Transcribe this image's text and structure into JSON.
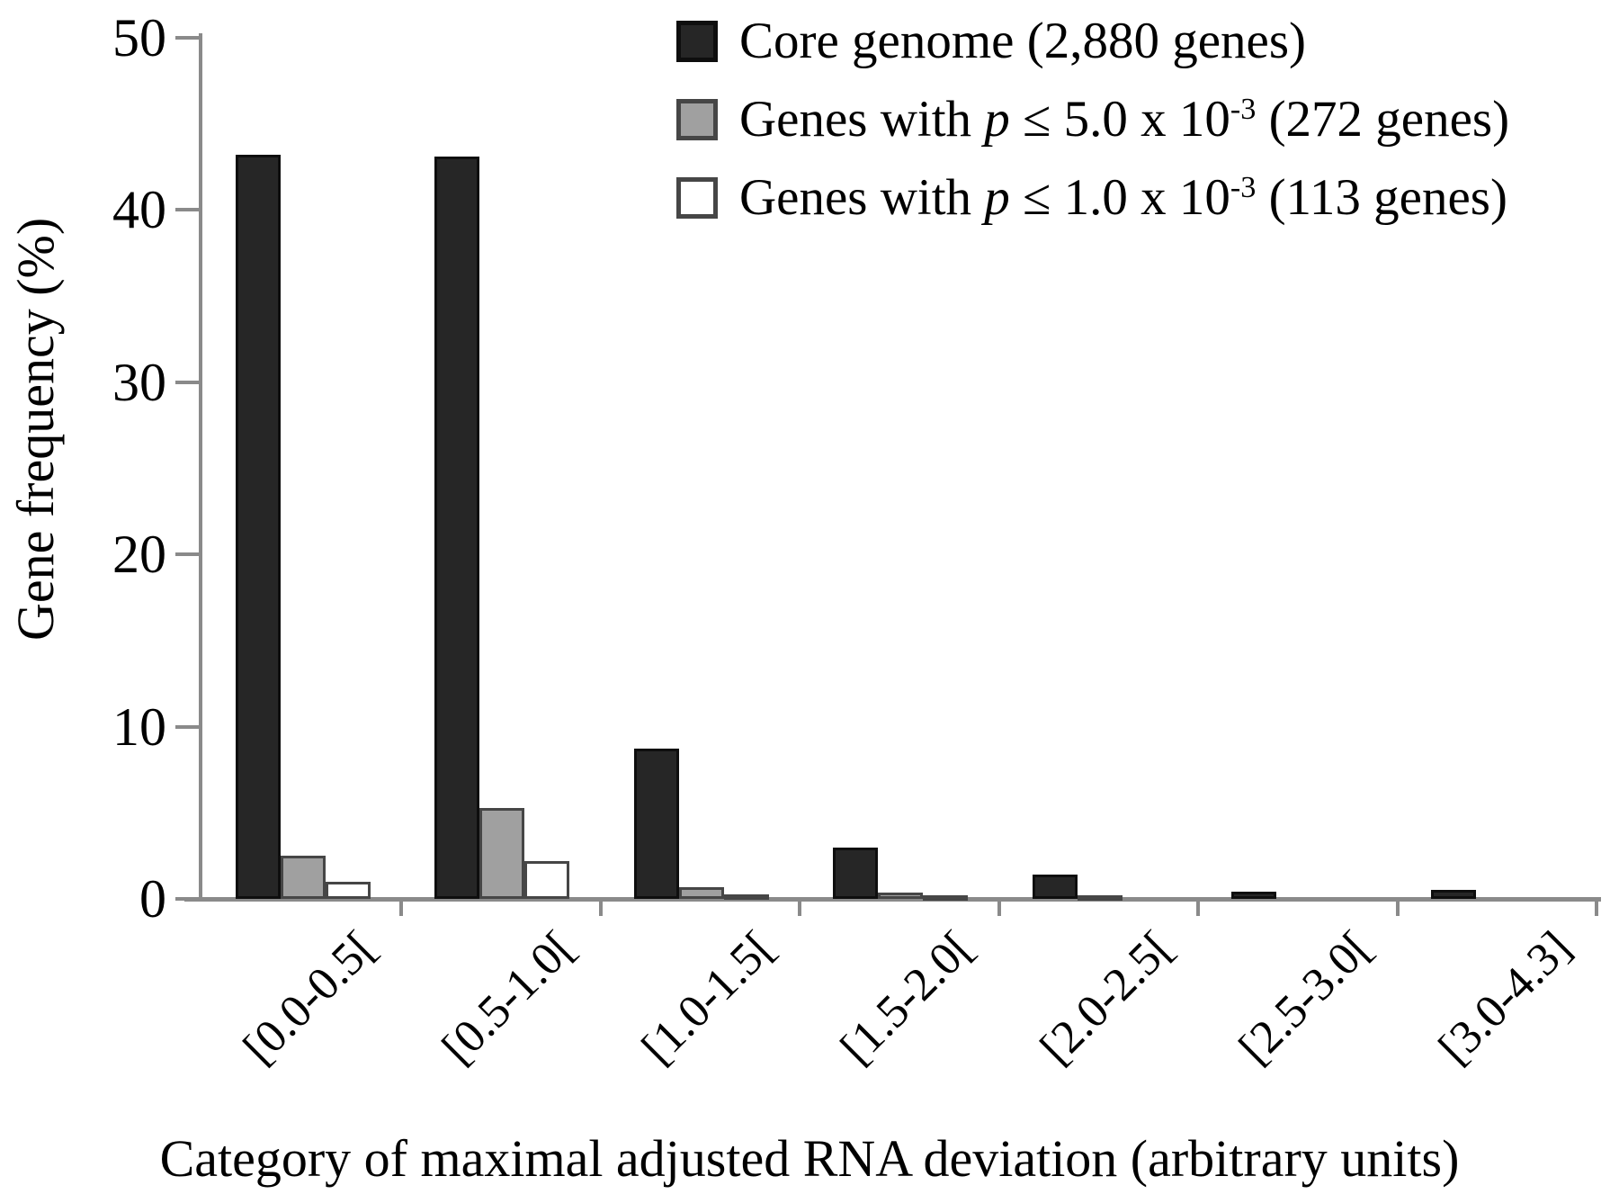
{
  "figure": {
    "background": "#ffffff"
  },
  "legend": {
    "items": [
      {
        "swatch": "black-swatch",
        "prefix": "Core genome (2,880 genes)",
        "italic": "",
        "mid": "",
        "sup": "",
        "suffix": ""
      },
      {
        "swatch": "gray-swatch",
        "prefix": "Genes with ",
        "italic": "p",
        "mid": " ≤ 5.0 x 10",
        "sup": "-3",
        "suffix": " (272 genes)"
      },
      {
        "swatch": "white-swatch",
        "prefix": "Genes with ",
        "italic": "p",
        "mid": " ≤ 1.0 x 10",
        "sup": "-3",
        "suffix": " (113 genes)"
      }
    ]
  },
  "chart_data": {
    "type": "bar",
    "title": "",
    "categories": [
      "[0.0-0.5[",
      "[0.5-1.0[",
      "[1.0-1.5[",
      "[1.5-2.0[",
      "[2.0-2.5[",
      "[2.5-3.0[",
      "[3.0-4.3]"
    ],
    "series": [
      {
        "name": "Core genome (2,880 genes)",
        "color": "#262626",
        "border_color": "#0e0e0e",
        "values": [
          43.2,
          43.1,
          8.7,
          3.0,
          1.4,
          0.4,
          0.5
        ]
      },
      {
        "name": "Genes with p ≤ 5.0 x 10⁻³ (272 genes)",
        "color": "#a0a0a0",
        "border_color": "#464646",
        "values": [
          2.5,
          5.3,
          0.7,
          0.35,
          0.2,
          0.05,
          0.05
        ]
      },
      {
        "name": "Genes with p ≤ 1.0 x 10⁻³ (113 genes)",
        "color": "#ffffff",
        "border_color": "#464646",
        "values": [
          1.0,
          2.2,
          0.25,
          0.2,
          0.1,
          0.0,
          0.0
        ]
      }
    ],
    "xlabel": "Category of maximal adjusted RNA deviation (arbitrary units)",
    "ylabel": "Gene frequency (%)",
    "ylim": [
      0,
      50
    ],
    "yticks": [
      0,
      10,
      20,
      30,
      40,
      50
    ],
    "grid": false,
    "legend_position": "top-inside",
    "axis_color": "#8a8a8a",
    "text_color": "#000000"
  }
}
